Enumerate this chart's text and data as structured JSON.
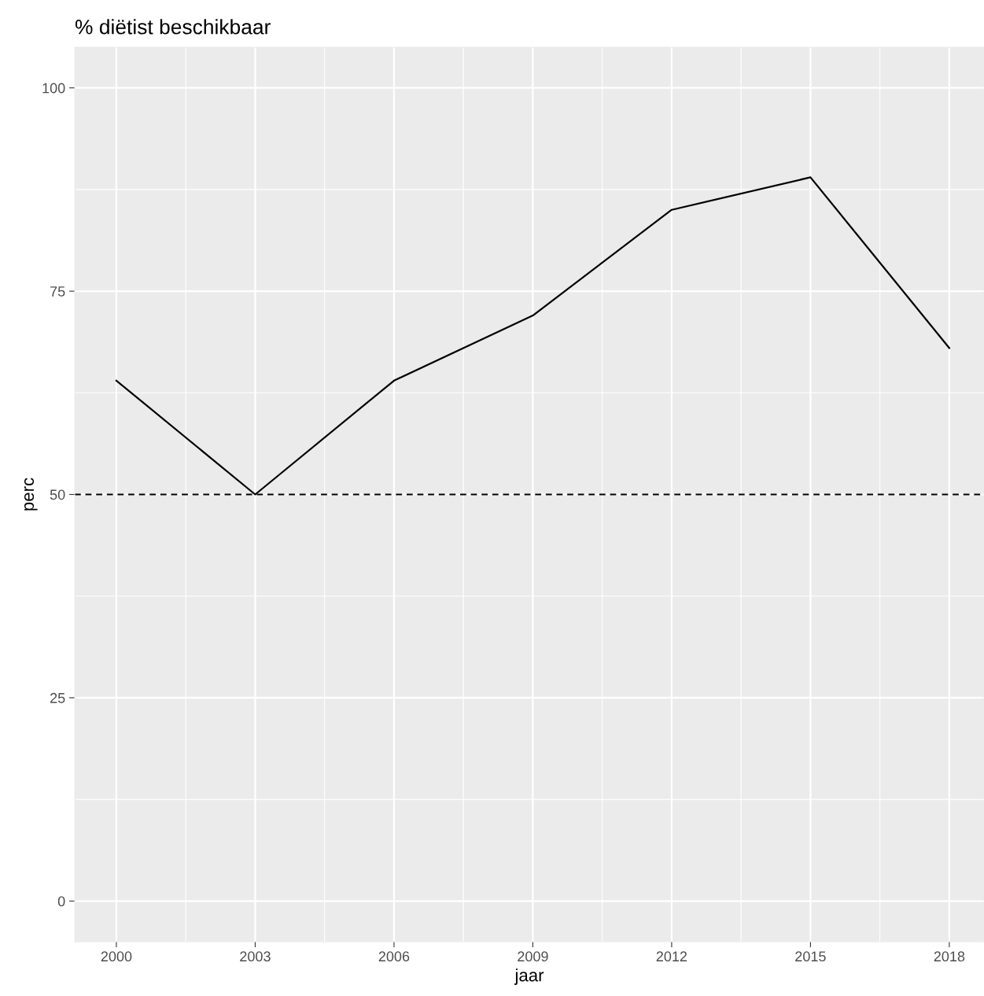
{
  "chart_data": {
    "type": "line",
    "title": "% diëtist beschikbaar",
    "xlabel": "jaar",
    "ylabel": "perc",
    "x": [
      2000,
      2003,
      2006,
      2009,
      2012,
      2015,
      2018
    ],
    "series": [
      {
        "color": "#000000",
        "values": [
          64,
          50,
          64,
          72,
          85,
          89,
          68
        ]
      }
    ],
    "xlim": [
      1999.1,
      2018.75
    ],
    "xticks": [
      2000,
      2003,
      2006,
      2009,
      2012,
      2015,
      2018
    ],
    "ylim": [
      -5,
      105
    ],
    "yticks": [
      0,
      25,
      50,
      75,
      100
    ],
    "ref_lines": [
      {
        "axis": "y",
        "value": 50,
        "color": "#000000",
        "line_style": "dashed"
      }
    ],
    "grid": true,
    "legend": false,
    "marker": "none",
    "line_style": "solid"
  }
}
